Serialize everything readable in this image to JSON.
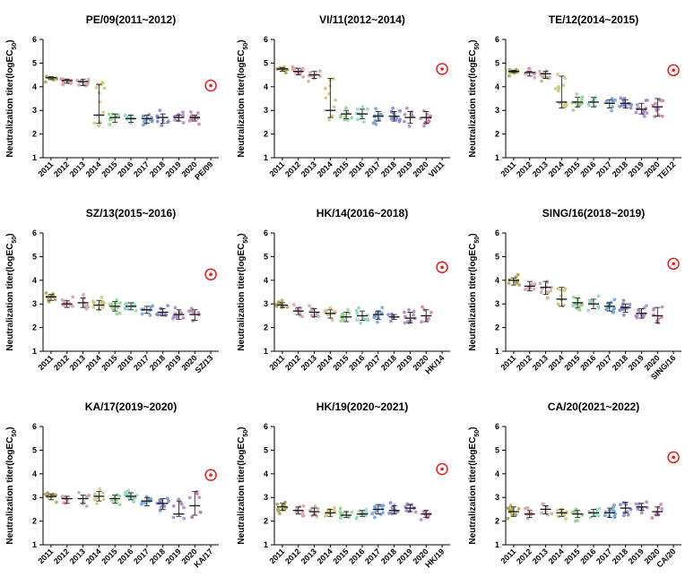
{
  "chart_data": {
    "type": "scatter",
    "ylabel_main": "Neutralization titer(logEC",
    "ylabel_sub": "50",
    "ylabel_close": ")",
    "y_ticks": [
      "1",
      "2",
      "3",
      "4",
      "5",
      "6"
    ],
    "ylim": [
      1,
      6
    ],
    "season_categories": [
      "2011",
      "2012",
      "2013",
      "2014",
      "2015",
      "2016",
      "2017",
      "2018",
      "2019",
      "2020"
    ],
    "season_colors": [
      "#a9a04e",
      "#d99aa8",
      "#c9a7a2",
      "#cfc578",
      "#8fd18b",
      "#8fd4c7",
      "#6f9fd4",
      "#7a84c4",
      "#a784c2",
      "#c27fb0"
    ],
    "highlight_color": "#e02020",
    "panels": [
      {
        "title": "PE/09(2011~2012)",
        "strain": "PE/09",
        "medians": [
          4.38,
          4.26,
          4.22,
          2.8,
          2.7,
          2.65,
          2.65,
          2.7,
          2.7,
          2.7
        ],
        "lows": [
          4.3,
          4.15,
          4.05,
          2.45,
          2.5,
          2.5,
          2.45,
          2.45,
          2.55,
          2.55
        ],
        "highs": [
          4.42,
          4.32,
          4.32,
          4.1,
          2.85,
          2.8,
          2.8,
          2.85,
          2.8,
          2.8
        ],
        "strain_value": 4.05
      },
      {
        "title": "VI/11(2012~2014)",
        "strain": "VI/11",
        "medians": [
          4.75,
          4.65,
          4.5,
          3.0,
          2.85,
          2.85,
          2.75,
          2.75,
          2.7,
          2.7
        ],
        "lows": [
          4.65,
          4.5,
          4.35,
          2.7,
          2.65,
          2.65,
          2.55,
          2.55,
          2.45,
          2.45
        ],
        "highs": [
          4.8,
          4.78,
          4.65,
          4.35,
          3.0,
          3.05,
          2.95,
          2.95,
          2.95,
          2.95
        ],
        "strain_value": 4.75
      },
      {
        "title": "TE/12(2014~2015)",
        "strain": "TE/12",
        "medians": [
          4.65,
          4.6,
          4.55,
          3.35,
          3.35,
          3.35,
          3.3,
          3.3,
          3.05,
          3.15
        ],
        "lows": [
          4.6,
          4.45,
          4.35,
          3.1,
          3.15,
          3.15,
          3.1,
          3.1,
          2.85,
          2.75
        ],
        "highs": [
          4.7,
          4.65,
          4.65,
          4.45,
          3.55,
          3.55,
          3.45,
          3.45,
          3.3,
          3.5
        ],
        "strain_value": 4.7
      },
      {
        "title": "SZ/13(2015~2016)",
        "strain": "SZ/13",
        "medians": [
          3.3,
          3.0,
          3.05,
          2.95,
          2.9,
          2.9,
          2.75,
          2.65,
          2.55,
          2.55
        ],
        "lows": [
          3.15,
          2.85,
          2.85,
          2.75,
          2.7,
          2.75,
          2.6,
          2.5,
          2.35,
          2.3
        ],
        "highs": [
          3.4,
          3.15,
          3.25,
          3.15,
          3.1,
          3.05,
          2.9,
          2.8,
          2.75,
          2.75
        ],
        "strain_value": 4.25
      },
      {
        "title": "HK/14(2016~2018)",
        "strain": "HK/14",
        "medians": [
          2.95,
          2.7,
          2.65,
          2.6,
          2.45,
          2.5,
          2.55,
          2.45,
          2.4,
          2.5
        ],
        "lows": [
          2.85,
          2.55,
          2.45,
          2.4,
          2.25,
          2.3,
          2.35,
          2.35,
          2.2,
          2.25
        ],
        "highs": [
          3.05,
          2.85,
          2.8,
          2.75,
          2.65,
          2.7,
          2.7,
          2.55,
          2.65,
          2.75
        ],
        "strain_value": 4.55
      },
      {
        "title": "SING/16(2018~2019)",
        "strain": "SING/16",
        "medians": [
          4.0,
          3.75,
          3.7,
          3.2,
          3.05,
          3.0,
          2.9,
          2.85,
          2.6,
          2.5
        ],
        "lows": [
          3.8,
          3.55,
          3.4,
          2.9,
          2.85,
          2.8,
          2.7,
          2.65,
          2.4,
          2.2
        ],
        "highs": [
          4.1,
          3.95,
          3.95,
          3.7,
          3.25,
          3.2,
          3.05,
          3.0,
          2.8,
          2.85
        ],
        "strain_value": 4.7
      },
      {
        "title": "KA/17(2019~2020)",
        "strain": "KA/17",
        "medians": [
          3.05,
          2.95,
          2.95,
          3.05,
          2.95,
          3.05,
          2.85,
          2.75,
          2.3,
          2.65
        ],
        "lows": [
          2.9,
          2.75,
          2.75,
          2.85,
          2.75,
          2.9,
          2.65,
          2.5,
          2.2,
          2.25
        ],
        "highs": [
          3.15,
          3.05,
          3.1,
          3.25,
          3.1,
          3.2,
          3.0,
          2.95,
          2.85,
          3.25
        ],
        "strain_value": 3.95
      },
      {
        "title": "HK/19(2020~2021)",
        "strain": "HK/19",
        "medians": [
          2.6,
          2.45,
          2.4,
          2.35,
          2.25,
          2.3,
          2.5,
          2.45,
          2.55,
          2.3
        ],
        "lows": [
          2.45,
          2.3,
          2.25,
          2.2,
          2.15,
          2.2,
          2.3,
          2.3,
          2.4,
          2.15
        ],
        "highs": [
          2.75,
          2.6,
          2.55,
          2.5,
          2.4,
          2.45,
          2.7,
          2.65,
          2.7,
          2.45
        ],
        "strain_value": 4.2
      },
      {
        "title": "CA/20(2021~2022)",
        "strain": "CA/20",
        "medians": [
          2.4,
          2.3,
          2.5,
          2.35,
          2.3,
          2.35,
          2.35,
          2.55,
          2.6,
          2.4
        ],
        "lows": [
          2.2,
          2.15,
          2.3,
          2.2,
          2.15,
          2.2,
          2.15,
          2.35,
          2.45,
          2.25
        ],
        "highs": [
          2.6,
          2.45,
          2.65,
          2.5,
          2.45,
          2.5,
          2.55,
          2.8,
          2.75,
          2.6
        ],
        "strain_value": 4.7
      }
    ]
  }
}
